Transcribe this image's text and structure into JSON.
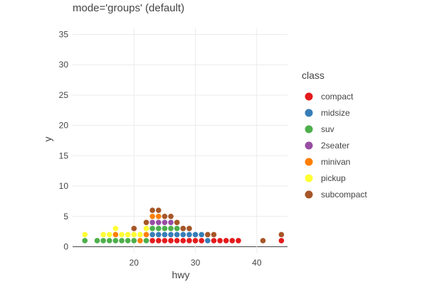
{
  "chart_data": {
    "type": "scatter",
    "title": "mode='groups' (default)",
    "xlabel": "hwy",
    "ylabel": "y",
    "xlim": [
      10,
      45
    ],
    "ylim": [
      -1,
      36
    ],
    "x_ticks": [
      20,
      30,
      40
    ],
    "y_ticks": [
      0,
      5,
      10,
      15,
      20,
      25,
      30,
      35
    ],
    "grid": true,
    "legend": {
      "title": "class",
      "placement": "right"
    },
    "series": [
      {
        "name": "compact",
        "color": "#e41a1c",
        "points": [
          {
            "x": 23,
            "y": 1
          },
          {
            "x": 24,
            "y": 1
          },
          {
            "x": 25,
            "y": 1
          },
          {
            "x": 26,
            "y": 1
          },
          {
            "x": 27,
            "y": 1
          },
          {
            "x": 28,
            "y": 1
          },
          {
            "x": 29,
            "y": 1
          },
          {
            "x": 30,
            "y": 1
          },
          {
            "x": 31,
            "y": 1
          },
          {
            "x": 33,
            "y": 1
          },
          {
            "x": 34,
            "y": 1
          },
          {
            "x": 35,
            "y": 1
          },
          {
            "x": 36,
            "y": 1
          },
          {
            "x": 37,
            "y": 1
          },
          {
            "x": 44,
            "y": 1
          }
        ]
      },
      {
        "name": "midsize",
        "color": "#377eb8",
        "points": [
          {
            "x": 23,
            "y": 2
          },
          {
            "x": 24,
            "y": 2
          },
          {
            "x": 25,
            "y": 2
          },
          {
            "x": 26,
            "y": 2
          },
          {
            "x": 27,
            "y": 2
          },
          {
            "x": 28,
            "y": 2
          },
          {
            "x": 29,
            "y": 2
          },
          {
            "x": 30,
            "y": 2
          },
          {
            "x": 31,
            "y": 2
          },
          {
            "x": 32,
            "y": 1
          }
        ]
      },
      {
        "name": "suv",
        "color": "#4daf4a",
        "points": [
          {
            "x": 12,
            "y": 1
          },
          {
            "x": 14,
            "y": 1
          },
          {
            "x": 15,
            "y": 1
          },
          {
            "x": 16,
            "y": 1
          },
          {
            "x": 17,
            "y": 1
          },
          {
            "x": 18,
            "y": 1
          },
          {
            "x": 19,
            "y": 1
          },
          {
            "x": 20,
            "y": 1
          },
          {
            "x": 22,
            "y": 1
          },
          {
            "x": 23,
            "y": 3
          },
          {
            "x": 24,
            "y": 3
          },
          {
            "x": 25,
            "y": 3
          },
          {
            "x": 26,
            "y": 3
          },
          {
            "x": 27,
            "y": 3
          },
          {
            "x": 28,
            "y": 3
          }
        ]
      },
      {
        "name": "2seater",
        "color": "#984ea3",
        "points": [
          {
            "x": 23,
            "y": 4
          },
          {
            "x": 24,
            "y": 4
          },
          {
            "x": 25,
            "y": 4
          },
          {
            "x": 26,
            "y": 4
          }
        ]
      },
      {
        "name": "minivan",
        "color": "#ff7f00",
        "points": [
          {
            "x": 17,
            "y": 2
          },
          {
            "x": 21,
            "y": 1
          },
          {
            "x": 22,
            "y": 2
          },
          {
            "x": 23,
            "y": 5
          },
          {
            "x": 24,
            "y": 5
          }
        ]
      },
      {
        "name": "pickup",
        "color": "#ffff33",
        "points": [
          {
            "x": 12,
            "y": 2
          },
          {
            "x": 15,
            "y": 2
          },
          {
            "x": 16,
            "y": 2
          },
          {
            "x": 17,
            "y": 3
          },
          {
            "x": 18,
            "y": 2
          },
          {
            "x": 19,
            "y": 2
          },
          {
            "x": 20,
            "y": 2
          },
          {
            "x": 21,
            "y": 2
          },
          {
            "x": 22,
            "y": 3
          }
        ]
      },
      {
        "name": "subcompact",
        "color": "#a65628",
        "points": [
          {
            "x": 20,
            "y": 3
          },
          {
            "x": 22,
            "y": 4
          },
          {
            "x": 23,
            "y": 6
          },
          {
            "x": 24,
            "y": 6
          },
          {
            "x": 25,
            "y": 5
          },
          {
            "x": 26,
            "y": 5
          },
          {
            "x": 27,
            "y": 4
          },
          {
            "x": 28,
            "y": 3
          },
          {
            "x": 29,
            "y": 3
          },
          {
            "x": 32,
            "y": 2
          },
          {
            "x": 33,
            "y": 2
          },
          {
            "x": 41,
            "y": 1
          },
          {
            "x": 44,
            "y": 2
          }
        ]
      }
    ]
  }
}
